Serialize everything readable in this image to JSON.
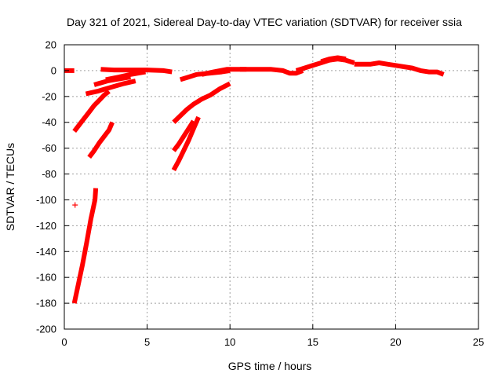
{
  "chart_data": {
    "type": "scatter",
    "title": "Day 321 of 2021, Sidereal Day-to-day VTEC variation (SDTVAR) for receiver ssia",
    "xlabel": "GPS time / hours",
    "ylabel": "SDTVAR / TECUs",
    "xlim": [
      0,
      25
    ],
    "ylim": [
      -200,
      20
    ],
    "xticks": [
      "0",
      "5",
      "10",
      "15",
      "20",
      "25"
    ],
    "yticks": [
      "20",
      "0",
      "-20",
      "-40",
      "-60",
      "-80",
      "-100",
      "-120",
      "-140",
      "-160",
      "-180",
      "-200"
    ],
    "grid": true,
    "color": "#ff0000",
    "series": [
      {
        "points": [
          [
            0.0,
            0
          ],
          [
            0.6,
            0
          ]
        ]
      },
      {
        "points": [
          [
            0.6,
            -180
          ],
          [
            0.85,
            -165
          ],
          [
            1.1,
            -150
          ],
          [
            1.35,
            -133
          ],
          [
            1.6,
            -115
          ],
          [
            1.85,
            -100
          ],
          [
            1.9,
            -91
          ]
        ]
      },
      {
        "points": [
          [
            0.6,
            -47
          ],
          [
            0.9,
            -42
          ],
          [
            1.2,
            -37
          ],
          [
            1.5,
            -32
          ],
          [
            1.8,
            -27
          ],
          [
            2.1,
            -23
          ],
          [
            2.4,
            -19
          ],
          [
            2.7,
            -16
          ]
        ]
      },
      {
        "points": [
          [
            1.5,
            -67
          ],
          [
            1.8,
            -62
          ],
          [
            2.1,
            -56
          ],
          [
            2.4,
            -51
          ],
          [
            2.7,
            -46
          ],
          [
            2.9,
            -40
          ]
        ]
      },
      {
        "points": [
          [
            1.3,
            -18
          ],
          [
            2.0,
            -16
          ],
          [
            2.8,
            -13
          ],
          [
            3.6,
            -10
          ],
          [
            4.3,
            -8
          ]
        ]
      },
      {
        "points": [
          [
            1.8,
            -11
          ],
          [
            2.6,
            -8
          ],
          [
            3.5,
            -6
          ],
          [
            4.0,
            -5
          ]
        ]
      },
      {
        "points": [
          [
            2.5,
            -7
          ],
          [
            3.3,
            -5
          ],
          [
            4.0,
            -3
          ],
          [
            4.9,
            -1
          ]
        ]
      },
      {
        "points": [
          [
            2.2,
            1
          ],
          [
            3.0,
            0.5
          ],
          [
            4.0,
            0.5
          ],
          [
            5.0,
            0.5
          ],
          [
            6.0,
            0
          ],
          [
            6.5,
            -1
          ]
        ]
      },
      {
        "points": [
          [
            6.6,
            -40
          ],
          [
            7.0,
            -35
          ],
          [
            7.4,
            -30
          ],
          [
            7.8,
            -26
          ],
          [
            8.3,
            -22
          ],
          [
            8.8,
            -19
          ],
          [
            9.4,
            -14
          ],
          [
            10.0,
            -10
          ]
        ]
      },
      {
        "points": [
          [
            6.6,
            -77
          ],
          [
            6.9,
            -70
          ],
          [
            7.2,
            -62
          ],
          [
            7.5,
            -54
          ],
          [
            7.8,
            -45
          ],
          [
            8.1,
            -36
          ]
        ]
      },
      {
        "points": [
          [
            6.6,
            -62
          ],
          [
            6.9,
            -57
          ],
          [
            7.2,
            -51
          ],
          [
            7.5,
            -45
          ],
          [
            7.8,
            -39
          ]
        ]
      },
      {
        "points": [
          [
            7.0,
            -7
          ],
          [
            7.5,
            -5
          ],
          [
            8.0,
            -3
          ],
          [
            8.8,
            -2
          ],
          [
            9.5,
            -1
          ],
          [
            10.0,
            0
          ]
        ]
      },
      {
        "points": [
          [
            8.3,
            -3
          ],
          [
            9.0,
            -1
          ],
          [
            9.8,
            1
          ],
          [
            10.5,
            1
          ],
          [
            11.0,
            1
          ]
        ]
      },
      {
        "points": [
          [
            10.6,
            1
          ],
          [
            11.5,
            1
          ],
          [
            12.5,
            1
          ],
          [
            13.2,
            0
          ],
          [
            13.6,
            -2
          ],
          [
            14.0,
            -2
          ],
          [
            14.4,
            0
          ]
        ]
      },
      {
        "points": [
          [
            14.0,
            0
          ],
          [
            14.5,
            2
          ],
          [
            15.0,
            4
          ],
          [
            15.5,
            6
          ],
          [
            16.0,
            8
          ],
          [
            16.5,
            9
          ],
          [
            17.0,
            8
          ],
          [
            17.5,
            6
          ]
        ]
      },
      {
        "points": [
          [
            15.5,
            7
          ],
          [
            16.0,
            9
          ],
          [
            16.5,
            10
          ],
          [
            17.0,
            9
          ]
        ]
      },
      {
        "points": [
          [
            17.5,
            5
          ],
          [
            18.0,
            5
          ],
          [
            18.5,
            5
          ],
          [
            19.0,
            6
          ],
          [
            19.5,
            5
          ],
          [
            20.0,
            4
          ],
          [
            20.5,
            3
          ],
          [
            21.0,
            2
          ],
          [
            21.5,
            0
          ],
          [
            22.0,
            -1
          ],
          [
            22.5,
            -1
          ],
          [
            22.9,
            -3
          ]
        ]
      }
    ],
    "markers": [
      {
        "x": 0.65,
        "y": -104
      }
    ]
  }
}
